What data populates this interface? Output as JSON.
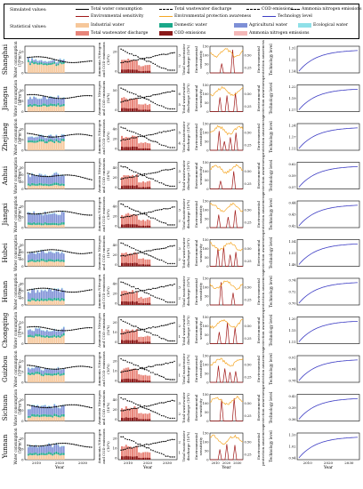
{
  "legend": {
    "simulated_header": "Simulated values:",
    "statistical_header": "Statistical values:",
    "simulated": [
      {
        "label": "Total water consumption",
        "style": "line-marker",
        "color": "#000000"
      },
      {
        "label": "Total wastewater discharge",
        "style": "dashed-marker",
        "color": "#000000"
      },
      {
        "label": "COD emissions",
        "style": "dashed-marker",
        "color": "#000000"
      },
      {
        "label": "Ammonia nitrogen emissions",
        "style": "dashed-marker",
        "color": "#000000"
      },
      {
        "label": "Environmental sensitivity",
        "style": "line",
        "color": "#a01818"
      },
      {
        "label": "Environmental protection awareness",
        "style": "line",
        "color": "#f5a623"
      },
      {
        "label": "Technology level",
        "style": "line",
        "color": "#3d3dc4"
      }
    ],
    "statistical": [
      {
        "label": "Industrial water",
        "color": "#f6c79a"
      },
      {
        "label": "Domestic water",
        "color": "#1aa889"
      },
      {
        "label": "Agricultural water",
        "color": "#7d8fd6"
      },
      {
        "label": "Ecological water",
        "color": "#8fe0e8"
      },
      {
        "label": "Total wastewater discharge",
        "color": "#e8857a"
      },
      {
        "label": "COD emissions",
        "color": "#8b1a1a"
      },
      {
        "label": "Ammonia nitrogen emissions",
        "color": "#f5b8b8"
      }
    ]
  },
  "axis_labels": {
    "water_ylabel": [
      "Water consumption",
      "(10⁹m³)"
    ],
    "emission_ylabel": [
      "Ammonia Nitrogen",
      "and COD emissions",
      "(10⁴t)"
    ],
    "wastewater_ylabel": [
      "Total wastewater",
      "discharge (10⁹t)"
    ],
    "sensitivity_ylabel": [
      "Environmental",
      "sensitivity"
    ],
    "awareness_ylabel": [
      "Environmental",
      "protection awareness"
    ],
    "tech_ylabel": "Technology level",
    "xlabel": "Year"
  },
  "chart_data": {
    "type": "small-multiples",
    "x_ticks": [
      "2010",
      "2020",
      "2030"
    ],
    "x_range": [
      2005,
      2035
    ],
    "provinces": [
      {
        "name": "Shanghai",
        "water_ticks": [
          "0",
          "5",
          "10"
        ],
        "emission_ticks": [
          "0",
          "20"
        ],
        "wastewater_ticks": [
          "2",
          "3"
        ],
        "sensitivity_ticks": [
          "0",
          "50",
          "100",
          "150"
        ],
        "awareness_ticks": [
          "0.25",
          "0.50"
        ],
        "tech_ticks": [
          "1.14",
          "1.22",
          "1.31"
        ]
      },
      {
        "name": "Jiangsu",
        "water_ticks": [
          "0",
          "25",
          "50"
        ],
        "emission_ticks": [
          "0",
          "50"
        ],
        "wastewater_ticks": [
          "5",
          "6"
        ],
        "sensitivity_ticks": [
          "0",
          "50",
          "100",
          "150"
        ],
        "awareness_ticks": [
          "0.25",
          "0.50"
        ],
        "tech_ticks": [
          "1.17",
          "1.19",
          "1.22"
        ]
      },
      {
        "name": "Zhejiang",
        "water_ticks": [
          "0",
          "10",
          "20"
        ],
        "emission_ticks": [
          "0",
          "20",
          "40"
        ],
        "wastewater_ticks": [
          "4",
          "5"
        ],
        "sensitivity_ticks": [
          "0",
          "50",
          "100",
          "150"
        ],
        "awareness_ticks": [
          "0.25",
          "0.50"
        ],
        "tech_ticks": [
          "1.11",
          "1.17",
          "1.24"
        ]
      },
      {
        "name": "Anhui",
        "water_ticks": [
          "0",
          "10",
          "20",
          "30"
        ],
        "emission_ticks": [
          "0",
          "20",
          "40"
        ],
        "wastewater_ticks": [
          "2",
          "3"
        ],
        "sensitivity_ticks": [
          "0",
          "50",
          "100",
          "150"
        ],
        "awareness_ticks": [
          "0.25",
          "0.50"
        ],
        "tech_ticks": [
          "0.57",
          "0.59",
          "0.62"
        ]
      },
      {
        "name": "Jiangxi",
        "water_ticks": [
          "0",
          "10",
          "20"
        ],
        "emission_ticks": [
          "0",
          "20",
          "40"
        ],
        "wastewater_ticks": [
          "2",
          "3"
        ],
        "sensitivity_ticks": [
          "0",
          "50",
          "100",
          "150"
        ],
        "awareness_ticks": [
          "0.25",
          "0.50"
        ],
        "tech_ticks": [
          "0.42",
          "0.43",
          "0.44"
        ]
      },
      {
        "name": "Hubei",
        "water_ticks": [
          "0",
          "10",
          "20",
          "30"
        ],
        "emission_ticks": [
          "0",
          "20",
          "40"
        ],
        "wastewater_ticks": [
          "2",
          "3"
        ],
        "sensitivity_ticks": [
          "0",
          "50",
          "100",
          "150"
        ],
        "awareness_ticks": [
          "0.25",
          "0.50"
        ],
        "tech_ticks": [
          "1.48",
          "1.51",
          "1.54"
        ]
      },
      {
        "name": "Hunan",
        "water_ticks": [
          "0",
          "10",
          "20",
          "30"
        ],
        "emission_ticks": [
          "0",
          "20",
          "40"
        ],
        "wastewater_ticks": [
          "2",
          "3"
        ],
        "sensitivity_ticks": [
          "0",
          "50",
          "100",
          "150"
        ],
        "awareness_ticks": [
          "0.25",
          "0.50"
        ],
        "tech_ticks": [
          "0.70",
          "0.72",
          "0.74"
        ]
      },
      {
        "name": "Chongqing",
        "water_ticks": [
          "0",
          "5",
          "10"
        ],
        "emission_ticks": [
          "0",
          "10",
          "20"
        ],
        "wastewater_ticks": [
          "1",
          "2"
        ],
        "sensitivity_ticks": [
          "0",
          "50",
          "100",
          "150"
        ],
        "awareness_ticks": [
          "0.25",
          "0.50"
        ],
        "tech_ticks": [
          "1.11",
          "1.15",
          "1.20"
        ]
      },
      {
        "name": "Guizhou",
        "water_ticks": [
          "0",
          "5",
          "10"
        ],
        "emission_ticks": [
          "0",
          "10",
          "20"
        ],
        "wastewater_ticks": [
          "1",
          "2"
        ],
        "sensitivity_ticks": [
          "0",
          "50",
          "100",
          "150"
        ],
        "awareness_ticks": [
          "0.25",
          "0.50"
        ],
        "tech_ticks": [
          "0.78",
          "0.84",
          "0.91"
        ]
      },
      {
        "name": "Sichuan",
        "water_ticks": [
          "0",
          "10",
          "20"
        ],
        "emission_ticks": [
          "0",
          "20",
          "40"
        ],
        "wastewater_ticks": [
          "2",
          "3"
        ],
        "sensitivity_ticks": [
          "0",
          "50",
          "100",
          "150"
        ],
        "awareness_ticks": [
          "0.25",
          "0.50"
        ],
        "tech_ticks": [
          "0.36",
          "0.39",
          "0.42"
        ]
      },
      {
        "name": "Yunnan",
        "water_ticks": [
          "0",
          "10",
          "20"
        ],
        "emission_ticks": [
          "0",
          "10",
          "20"
        ],
        "wastewater_ticks": [
          "1",
          "2"
        ],
        "sensitivity_ticks": [
          "0",
          "50",
          "100",
          "150"
        ],
        "awareness_ticks": [
          "0.25",
          "0.50"
        ],
        "tech_ticks": [
          "0.94",
          "1.02",
          "1.10"
        ]
      }
    ],
    "styles": {
      "industrial_color": "#f6c79a",
      "domestic_color": "#1aa889",
      "agricultural_color": "#7d8fd6",
      "ecological_color": "#8fe0e8",
      "wastewater_color": "#e8857a",
      "cod_color": "#8b1a1a",
      "ammonia_color": "#f5b8b8",
      "sensitivity_color": "#a01818",
      "awareness_color": "#f5a623",
      "tech_color": "#3d3dc4"
    }
  }
}
